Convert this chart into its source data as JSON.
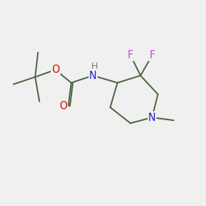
{
  "bg_color": "#f0f0f0",
  "bond_color": "#4a6741",
  "bond_width": 1.5,
  "atom_colors": {
    "N": "#1a1acc",
    "O": "#dd0000",
    "F": "#cc44cc",
    "H": "#777777",
    "C": "#4a6741"
  },
  "font_size": 10.5,
  "fig_size": [
    3.0,
    3.0
  ],
  "dpi": 100,
  "xlim": [
    0.2,
    7.2
  ],
  "ylim": [
    1.2,
    6.2
  ]
}
